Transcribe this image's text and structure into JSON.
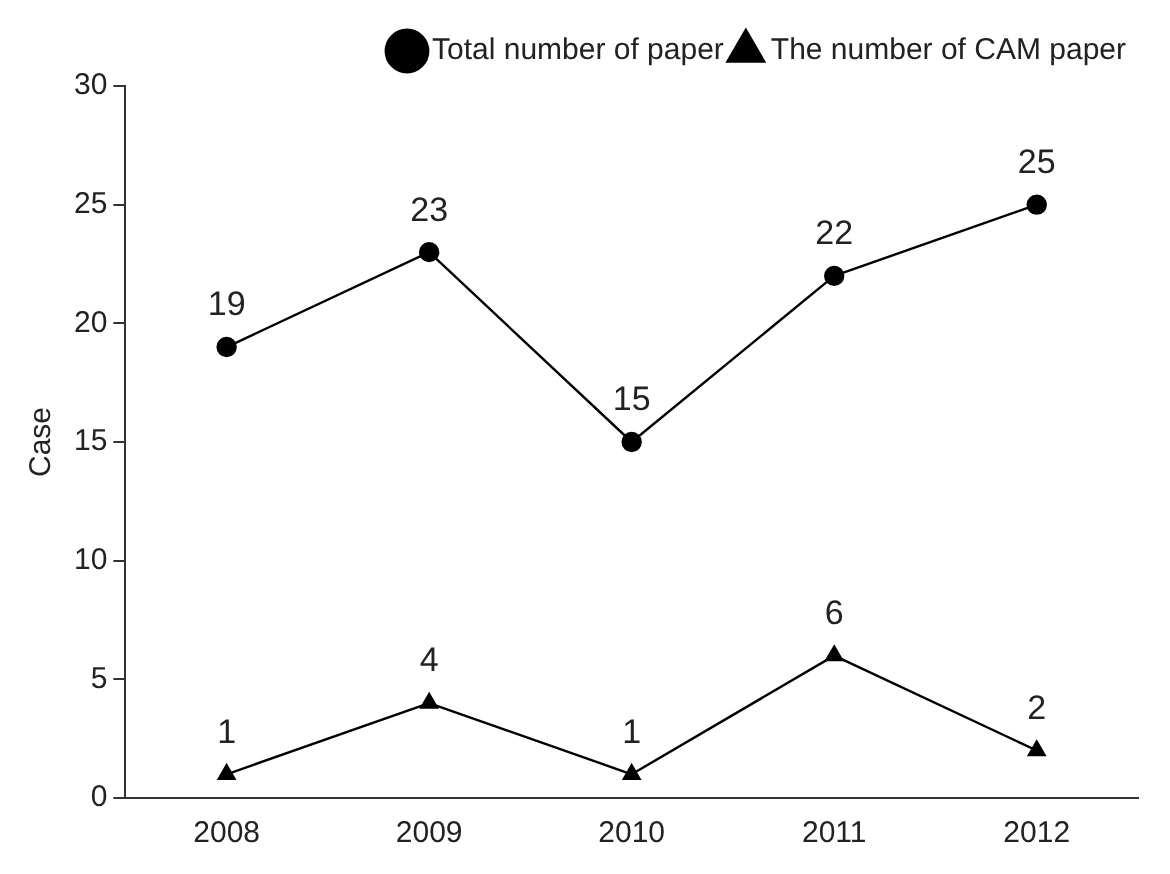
{
  "chart_data": {
    "type": "line",
    "ylabel": "Case",
    "categories": [
      "2008",
      "2009",
      "2010",
      "2011",
      "2012"
    ],
    "series": [
      {
        "name": "Total number of paper",
        "color": "#000000",
        "marker": "circle",
        "values": [
          19,
          23,
          15,
          22,
          25
        ]
      },
      {
        "name": "The number of CAM paper",
        "color": "#000000",
        "marker": "triangle",
        "values": [
          1,
          4,
          1,
          6,
          2
        ]
      }
    ],
    "ylim": [
      0,
      30
    ],
    "yticks": [
      0,
      5,
      10,
      15,
      20,
      25,
      30
    ],
    "grid": false,
    "legend": "top right",
    "data_labels": true,
    "line_style": "solid"
  }
}
